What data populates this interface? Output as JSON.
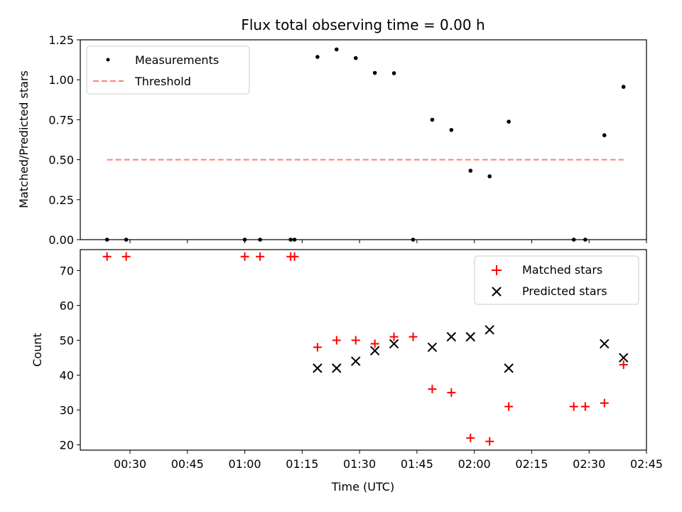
{
  "chart_data": [
    {
      "type": "scatter",
      "title": "Flux total observing time = 0.00 h",
      "xlabel": "",
      "ylabel": "Matched/Predicted stars",
      "xlim": [
        "00:17",
        "02:45"
      ],
      "ylim": [
        0,
        1.25
      ],
      "yticks": [
        "0.00",
        "0.25",
        "0.50",
        "0.75",
        "1.00",
        "1.25"
      ],
      "yticks_values": [
        0,
        0.25,
        0.5,
        0.75,
        1.0,
        1.25
      ],
      "xticks_values": [
        "00:30",
        "00:45",
        "01:00",
        "01:15",
        "01:30",
        "01:45",
        "02:00",
        "02:15",
        "02:30",
        "02:45"
      ],
      "legend": {
        "placement": "upper-left",
        "entries": [
          "Measurements",
          "Threshold"
        ]
      },
      "series": [
        {
          "name": "Measurements",
          "marker": "dot",
          "color": "#000000",
          "x": [
            "00:24",
            "00:29",
            "01:00",
            "01:04",
            "01:12",
            "01:13",
            "01:19",
            "01:24",
            "01:29",
            "01:34",
            "01:39",
            "01:44",
            "01:49",
            "01:54",
            "01:59",
            "02:04",
            "02:09",
            "02:26",
            "02:29",
            "02:34",
            "02:39"
          ],
          "y": [
            0,
            0,
            0,
            0,
            0,
            0,
            1.143,
            1.19,
            1.136,
            1.043,
            1.041,
            0,
            0.75,
            0.686,
            0.431,
            0.396,
            0.738,
            0,
            0,
            0.653,
            0.956
          ]
        },
        {
          "name": "Threshold",
          "style": "dashed",
          "color": "#ff8080",
          "x": [
            "00:24",
            "02:39"
          ],
          "y": [
            0.5,
            0.5
          ]
        }
      ]
    },
    {
      "type": "scatter",
      "title": "",
      "xlabel": "Time (UTC)",
      "ylabel": "Count",
      "xlim": [
        "00:17",
        "02:45"
      ],
      "ylim": [
        18.5,
        76
      ],
      "yticks": [
        "20",
        "30",
        "40",
        "50",
        "60",
        "70"
      ],
      "yticks_values": [
        20,
        30,
        40,
        50,
        60,
        70
      ],
      "xticks": [
        "00:30",
        "00:45",
        "01:00",
        "01:15",
        "01:30",
        "01:45",
        "02:00",
        "02:15",
        "02:30",
        "02:45"
      ],
      "xticks_values": [
        "00:30",
        "00:45",
        "01:00",
        "01:15",
        "01:30",
        "01:45",
        "02:00",
        "02:15",
        "02:30",
        "02:45"
      ],
      "legend": {
        "placement": "upper-right",
        "entries": [
          "Matched stars",
          "Predicted stars"
        ]
      },
      "series": [
        {
          "name": "Matched stars",
          "marker": "plus",
          "color": "#ff0000",
          "x": [
            "00:24",
            "00:29",
            "01:00",
            "01:04",
            "01:12",
            "01:13",
            "01:19",
            "01:24",
            "01:29",
            "01:34",
            "01:39",
            "01:44",
            "01:49",
            "01:54",
            "01:59",
            "02:04",
            "02:09",
            "02:26",
            "02:29",
            "02:34",
            "02:39"
          ],
          "y": [
            74,
            74,
            74,
            74,
            74,
            74,
            48,
            50,
            50,
            49,
            51,
            51,
            36,
            35,
            22,
            21,
            31,
            31,
            31,
            32,
            43
          ]
        },
        {
          "name": "Predicted stars",
          "marker": "x",
          "color": "#000000",
          "x": [
            "01:19",
            "01:24",
            "01:29",
            "01:34",
            "01:39",
            "01:49",
            "01:54",
            "01:59",
            "02:04",
            "02:09",
            "02:34",
            "02:39"
          ],
          "y": [
            42,
            42,
            44,
            47,
            49,
            48,
            51,
            51,
            53,
            42,
            49,
            45
          ]
        }
      ]
    }
  ]
}
